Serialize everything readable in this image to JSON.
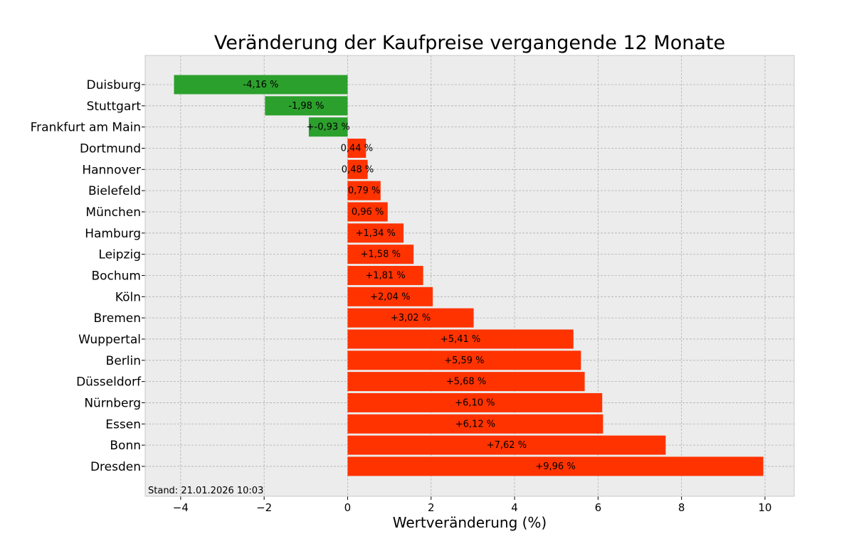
{
  "chart_data": {
    "type": "bar",
    "orientation": "horizontal",
    "title": "Veränderung der Kaufpreise vergangende 12 Monate",
    "xlabel": "Wertveränderung (%)",
    "ylabel": "",
    "xlim": [
      -4.85,
      10.7
    ],
    "xticks": [
      -4,
      -2,
      0,
      2,
      4,
      6,
      8,
      10
    ],
    "xtick_labels": [
      "−4",
      "−2",
      "0",
      "2",
      "4",
      "6",
      "8",
      "10"
    ],
    "grid": true,
    "categories": [
      "Duisburg",
      "Stuttgart",
      "Frankfurt am Main",
      "Dortmund",
      "Hannover",
      "Bielefeld",
      "München",
      "Hamburg",
      "Leipzig",
      "Bochum",
      "Köln",
      "Bremen",
      "Wuppertal",
      "Berlin",
      "Düsseldorf",
      "Nürnberg",
      "Essen",
      "Bonn",
      "Dresden"
    ],
    "values": [
      -4.16,
      -1.98,
      -0.93,
      0.44,
      0.48,
      0.79,
      0.96,
      1.34,
      1.58,
      1.81,
      2.04,
      3.02,
      5.41,
      5.59,
      5.68,
      6.1,
      6.12,
      7.62,
      9.96
    ],
    "value_labels": [
      "-4,16 %",
      "-1,98 %",
      "+-0,93 %",
      "0,44 %",
      "0,48 %",
      "0,79 %",
      "0,96 %",
      "+1,34 %",
      "+1,58 %",
      "+1,81 %",
      "+2,04 %",
      "+3,02 %",
      "+5,41 %",
      "+5,59 %",
      "+5,68 %",
      "+6,10 %",
      "+6,12 %",
      "+7,62 %",
      "+9,96 %"
    ],
    "colors": {
      "negative": "#2ca02c",
      "positive": "#ff3300",
      "plot_background": "#ececec",
      "grid": "#b0b0b0",
      "axes_edge": "#c8c8c8"
    },
    "footnote": "Stand: 21.01.2026 10:03"
  }
}
